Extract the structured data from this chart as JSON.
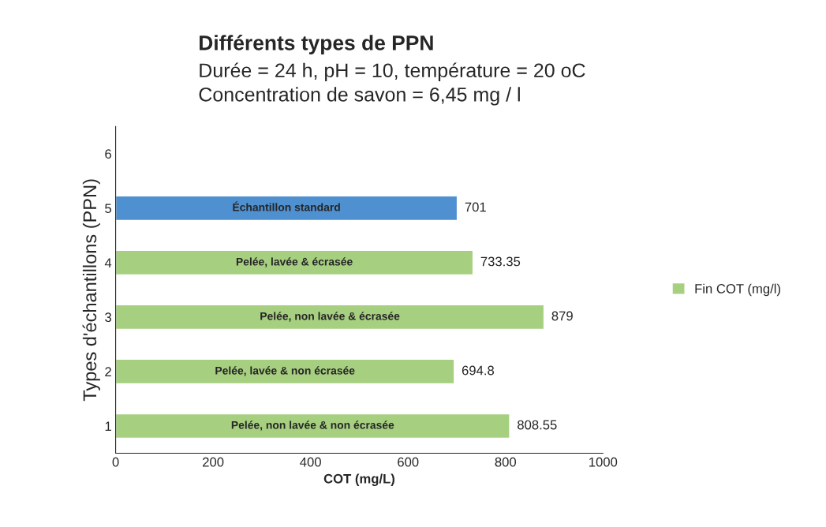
{
  "chart_data": {
    "type": "bar",
    "orientation": "horizontal",
    "title": "Différents types de PPN",
    "subtitle": "Durée = 24 h, pH = 10, température = 20 oC\nConcentration de savon = 6,45 mg / l",
    "xlabel": "COT (mg/L)",
    "ylabel": "Types d'échantillons (PPN)",
    "categories": [
      "6",
      "5",
      "4",
      "3",
      "2",
      "1"
    ],
    "series": [
      {
        "name": "Fin COT (mg/l)",
        "color": "#a6cf80",
        "colors": [
          null,
          "#4f90d0",
          "#a6cf80",
          "#a6cf80",
          "#a6cf80",
          "#a6cf80"
        ],
        "values": [
          null,
          701,
          733.35,
          879,
          694.8,
          808.55
        ]
      }
    ],
    "xlim": [
      0,
      1000
    ],
    "xticks": [
      0,
      200,
      400,
      600,
      800,
      1000
    ],
    "grid": false,
    "legend": "right",
    "data_labels": true,
    "annotations": [
      "Échantillon standard",
      "Pelée, lavée & écrasée",
      "Pelée, non lavée & écrasée",
      "Pelée, lavée & non écrasée",
      "Pelée, non lavée & non écrasée"
    ]
  }
}
